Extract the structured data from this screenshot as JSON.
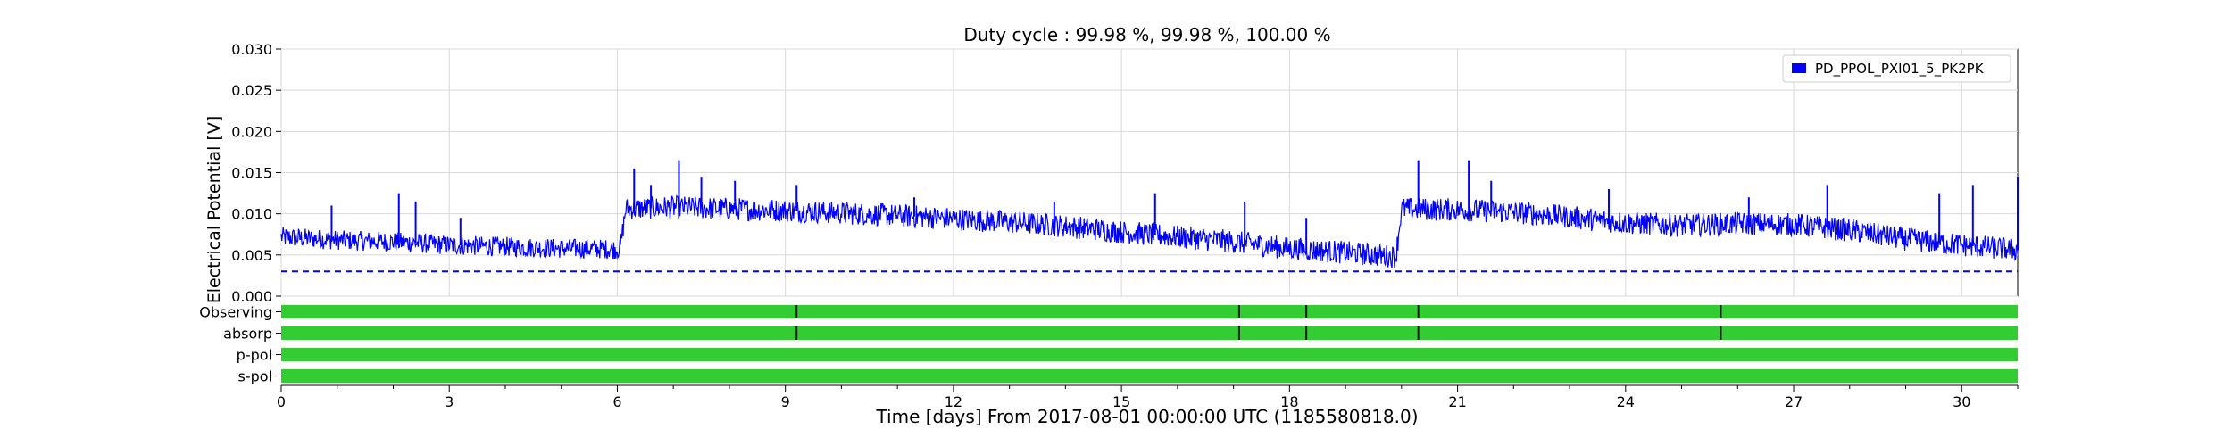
{
  "chart_data": {
    "type": "line",
    "title": "Duty cycle : 99.98 %, 99.98 %, 100.00 %",
    "xlabel": "Time [days] From 2017-08-01 00:00:00 UTC (1185580818.0)",
    "ylabel": "Electrical Potential [V]",
    "xlim": [
      0,
      31
    ],
    "ylim": [
      0,
      0.03
    ],
    "grid": true,
    "legend_position": "top-right",
    "x_ticks": [
      "0",
      "3",
      "6",
      "9",
      "12",
      "15",
      "18",
      "21",
      "24",
      "27",
      "30"
    ],
    "y_ticks": [
      "0.000",
      "0.005",
      "0.010",
      "0.015",
      "0.020",
      "0.025",
      "0.030"
    ],
    "series": [
      {
        "name": "PD_PPOL_PXI01_5_PK2PK",
        "color": "#0000ff",
        "x": [
          0,
          1,
          2,
          3,
          4,
          5,
          6.05,
          6.15,
          7,
          8,
          9,
          10,
          11,
          12,
          13,
          14,
          15,
          16,
          17,
          18,
          19,
          19.9,
          20.0,
          21,
          22,
          23,
          24,
          25,
          26,
          27,
          28,
          29,
          30,
          31
        ],
        "y": [
          0.0072,
          0.0068,
          0.0066,
          0.0062,
          0.006,
          0.0058,
          0.0057,
          0.0106,
          0.0108,
          0.0106,
          0.0104,
          0.0101,
          0.0098,
          0.0094,
          0.009,
          0.0085,
          0.0078,
          0.0072,
          0.0066,
          0.0058,
          0.0053,
          0.0048,
          0.0106,
          0.0105,
          0.0102,
          0.0096,
          0.0089,
          0.0086,
          0.0088,
          0.0087,
          0.008,
          0.0069,
          0.0062,
          0.0056
        ],
        "band": [
          0.0012,
          0.0012,
          0.0012,
          0.0012,
          0.0012,
          0.0012,
          0.0012,
          0.0014,
          0.0014,
          0.0014,
          0.0014,
          0.0014,
          0.0014,
          0.0014,
          0.0014,
          0.0014,
          0.0014,
          0.0014,
          0.0014,
          0.0014,
          0.0014,
          0.0014,
          0.0014,
          0.0014,
          0.0014,
          0.0014,
          0.0014,
          0.0014,
          0.0014,
          0.0014,
          0.0014,
          0.0014,
          0.0014,
          0.0014
        ],
        "spikes": [
          [
            0.9,
            0.011
          ],
          [
            2.1,
            0.0125
          ],
          [
            2.4,
            0.0115
          ],
          [
            3.2,
            0.0095
          ],
          [
            6.3,
            0.0155
          ],
          [
            6.6,
            0.0135
          ],
          [
            7.1,
            0.0165
          ],
          [
            7.5,
            0.0145
          ],
          [
            8.1,
            0.014
          ],
          [
            9.2,
            0.0135
          ],
          [
            11.3,
            0.012
          ],
          [
            13.8,
            0.0115
          ],
          [
            15.6,
            0.0125
          ],
          [
            17.2,
            0.0115
          ],
          [
            18.3,
            0.0095
          ],
          [
            20.3,
            0.0165
          ],
          [
            21.2,
            0.0165
          ],
          [
            21.6,
            0.014
          ],
          [
            23.7,
            0.013
          ],
          [
            26.2,
            0.012
          ],
          [
            27.6,
            0.0135
          ],
          [
            29.6,
            0.0125
          ],
          [
            30.2,
            0.0135
          ],
          [
            31.0,
            0.0145
          ]
        ]
      }
    ],
    "threshold": {
      "value": 0.003,
      "style": "dashed",
      "color": "#0000ff"
    },
    "segments": {
      "color": "#33cc33",
      "rows": [
        {
          "label": "Observing",
          "breaks": [
            9.2,
            17.1,
            18.3,
            20.3,
            25.7
          ]
        },
        {
          "label": "absorp",
          "breaks": [
            9.2,
            17.1,
            18.3,
            20.3,
            25.7
          ]
        },
        {
          "label": "p-pol",
          "breaks": []
        },
        {
          "label": "s-pol",
          "breaks": []
        }
      ]
    }
  }
}
